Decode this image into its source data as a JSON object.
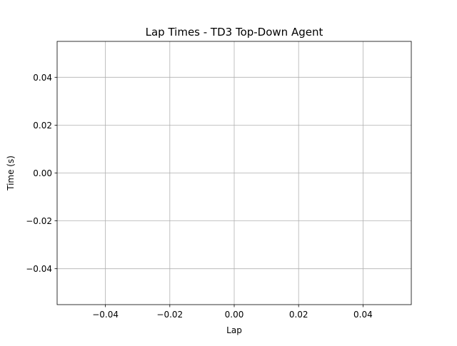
{
  "chart_data": {
    "type": "line",
    "title": "Lap Times - TD3 Top-Down Agent",
    "xlabel": "Lap",
    "ylabel": "Time (s)",
    "xlim": [
      -0.055,
      0.055
    ],
    "ylim": [
      -0.055,
      0.055
    ],
    "x_ticks": [
      -0.04,
      -0.02,
      0.0,
      0.02,
      0.04
    ],
    "x_tick_labels": [
      "−0.04",
      "−0.02",
      "0.00",
      "0.02",
      "0.04"
    ],
    "y_ticks": [
      -0.04,
      -0.02,
      0.0,
      0.02,
      0.04
    ],
    "y_tick_labels": [
      "−0.04",
      "−0.02",
      "0.00",
      "0.02",
      "0.04"
    ],
    "grid": true,
    "series": [
      {
        "x": [],
        "y": []
      }
    ],
    "colors": {
      "grid": "#b0b0b0",
      "axes": "#000000",
      "background": "#ffffff"
    }
  }
}
